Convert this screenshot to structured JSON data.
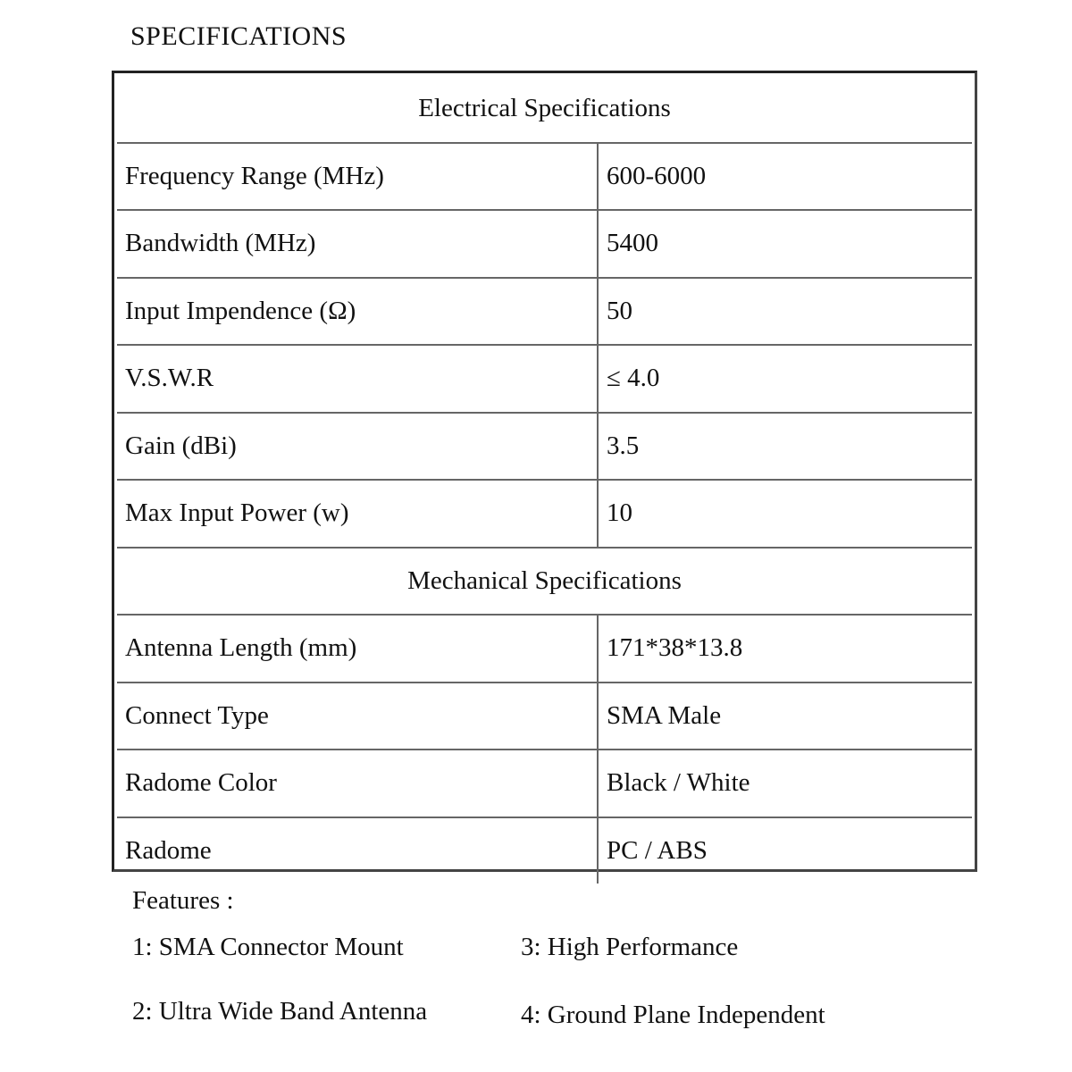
{
  "title": "SPECIFICATIONS",
  "electrical_header": "Electrical Specifications",
  "electrical_rows": [
    {
      "label": "Frequency Range (MHz)",
      "value": "600-6000"
    },
    {
      "label": "Bandwidth (MHz)",
      "value": "5400"
    },
    {
      "label": "Input Impendence (Ω)",
      "value": "50"
    },
    {
      "label": "V.S.W.R",
      "value": "≤ 4.0"
    },
    {
      "label": "Gain (dBi)",
      "value": "3.5"
    },
    {
      "label": "Max Input Power (w)",
      "value": "10"
    }
  ],
  "mechanical_header": "Mechanical Specifications",
  "mechanical_rows": [
    {
      "label": "Antenna Length (mm)",
      "value": "171*38*13.8"
    },
    {
      "label": "Connect Type",
      "value": "SMA Male"
    },
    {
      "label": "Radome Color",
      "value": "Black / White"
    },
    {
      "label": "Radome",
      "value": "PC / ABS"
    }
  ],
  "features": {
    "heading": "Features :",
    "items": [
      "1: SMA Connector Mount",
      "2: Ultra Wide Band Antenna",
      "3: High Performance",
      "4: Ground Plane Independent"
    ]
  }
}
